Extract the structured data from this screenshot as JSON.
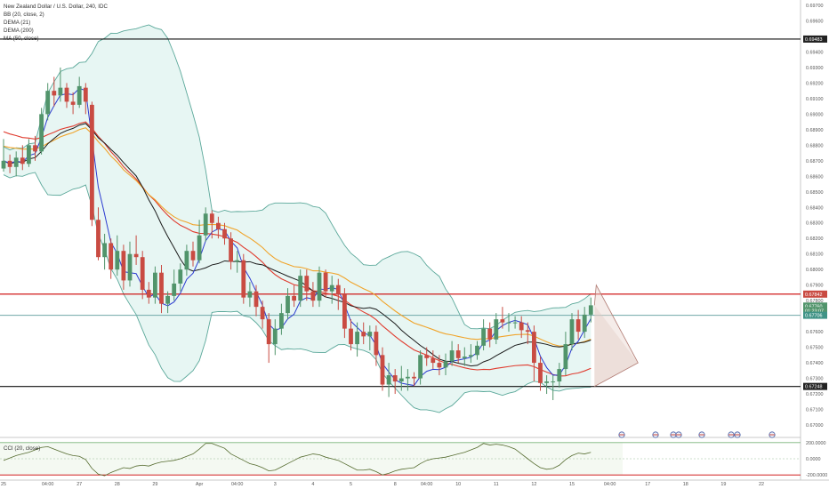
{
  "chart_header": {
    "symbol": "New Zealand Dollar / U.S. Dollar, 240, IDC",
    "indicators": [
      "BB (20, close, 2)",
      "DEMA (21)",
      "DEMA (200)",
      "MA (50, close)"
    ],
    "cci_title": "CCI (20, close)"
  },
  "colors": {
    "up": "#51946b",
    "down": "#c94b42",
    "bb": "#5ba89a",
    "bb_fill": "#dff3ef",
    "dema21": "#2c3bd1",
    "dema200": "#e03c2f",
    "ma50": "#f0a42b",
    "black_ma": "#1a1a1a",
    "resistance": "#cc0000",
    "support": "#111111",
    "midline": "#6fa8a8",
    "tag_red": "#c94b42",
    "tag_black": "#222222",
    "tag_green": "#51946b",
    "tag_teal": "#3f9386"
  },
  "price_axis": {
    "ticks": [
      "0.69700",
      "0.69600",
      "0.69483",
      "0.69400",
      "0.69300",
      "0.69200",
      "0.69100",
      "0.69000",
      "0.68900",
      "0.68800",
      "0.68700",
      "0.68600",
      "0.68500",
      "0.68400",
      "0.68300",
      "0.68200",
      "0.68100",
      "0.68000",
      "0.67900",
      "0.67842",
      "0.67800",
      "0.67760",
      "0.67706",
      "0.67600",
      "0.67500",
      "0.67400",
      "0.67300",
      "0.67248",
      "0.67200",
      "0.67100",
      "0.67000"
    ],
    "tags": [
      {
        "text": "0.69483",
        "price": 0.69483,
        "kind": "black"
      },
      {
        "text": "0.67842",
        "price": 0.67842,
        "kind": "red"
      },
      {
        "text": "0.67760",
        "price": 0.67765,
        "kind": "green"
      },
      {
        "text": "01:23:07",
        "price": 0.67735,
        "kind": "green"
      },
      {
        "text": "0.67706",
        "price": 0.67706,
        "kind": "teal"
      },
      {
        "text": "0.67248",
        "price": 0.67248,
        "kind": "black"
      }
    ]
  },
  "cci_axis": {
    "ticks": [
      "200.0000",
      "0.0000",
      "-200.0000"
    ]
  },
  "time_axis": {
    "labels": [
      {
        "t": "25",
        "i": 0
      },
      {
        "t": "04:00",
        "i": 7
      },
      {
        "t": "27",
        "i": 12
      },
      {
        "t": "28",
        "i": 18
      },
      {
        "t": "29",
        "i": 24
      },
      {
        "t": "Apr",
        "i": 31
      },
      {
        "t": "04:00",
        "i": 37
      },
      {
        "t": "3",
        "i": 43
      },
      {
        "t": "4",
        "i": 49
      },
      {
        "t": "5",
        "i": 55
      },
      {
        "t": "8",
        "i": 62
      },
      {
        "t": "04:00",
        "i": 67
      },
      {
        "t": "10",
        "i": 72
      },
      {
        "t": "11",
        "i": 78
      },
      {
        "t": "12",
        "i": 84
      },
      {
        "t": "15",
        "i": 90
      },
      {
        "t": "04:00",
        "i": 96
      },
      {
        "t": "17",
        "i": 102
      },
      {
        "t": "18",
        "i": 108
      },
      {
        "t": "19",
        "i": 114
      },
      {
        "t": "22",
        "i": 120
      }
    ]
  },
  "chart_data": {
    "type": "candlestick",
    "title": "New Zealand Dollar / U.S. Dollar, 240, IDC",
    "ylim": [
      0.67,
      0.697
    ],
    "horizontal_lines": [
      {
        "price": 0.69483,
        "color": "support"
      },
      {
        "price": 0.67842,
        "color": "resistance"
      },
      {
        "price": 0.67706,
        "color": "midline"
      },
      {
        "price": 0.67248,
        "color": "support"
      }
    ],
    "candles": [
      [
        0.6865,
        0.687,
        0.6884,
        0.6863
      ],
      [
        0.687,
        0.6866,
        0.6874,
        0.6862
      ],
      [
        0.6866,
        0.6872,
        0.6876,
        0.686
      ],
      [
        0.6872,
        0.6868,
        0.688,
        0.6864
      ],
      [
        0.6868,
        0.688,
        0.6884,
        0.6866
      ],
      [
        0.688,
        0.6876,
        0.6886,
        0.687
      ],
      [
        0.6876,
        0.69,
        0.6904,
        0.6874
      ],
      [
        0.69,
        0.6915,
        0.692,
        0.6896
      ],
      [
        0.6915,
        0.6912,
        0.6924,
        0.6905
      ],
      [
        0.6912,
        0.6917,
        0.693,
        0.6908
      ],
      [
        0.6917,
        0.6908,
        0.692,
        0.6904
      ],
      [
        0.6908,
        0.6906,
        0.6914,
        0.69
      ],
      [
        0.6906,
        0.6918,
        0.6924,
        0.6904
      ],
      [
        0.6917,
        0.6908,
        0.692,
        0.69
      ],
      [
        0.6906,
        0.6832,
        0.6908,
        0.6828
      ],
      [
        0.6832,
        0.6808,
        0.684,
        0.6806
      ],
      [
        0.6808,
        0.6817,
        0.6823,
        0.68
      ],
      [
        0.6817,
        0.68,
        0.682,
        0.6794
      ],
      [
        0.68,
        0.6812,
        0.6822,
        0.6796
      ],
      [
        0.6812,
        0.6793,
        0.6816,
        0.6787
      ],
      [
        0.6793,
        0.681,
        0.6818,
        0.6789
      ],
      [
        0.681,
        0.6808,
        0.6822,
        0.6803
      ],
      [
        0.6808,
        0.6787,
        0.6812,
        0.6781
      ],
      [
        0.6787,
        0.6782,
        0.6792,
        0.6778
      ],
      [
        0.6782,
        0.6798,
        0.6802,
        0.6778
      ],
      [
        0.6798,
        0.6778,
        0.6803,
        0.6772
      ],
      [
        0.6778,
        0.6783,
        0.6786,
        0.6772
      ],
      [
        0.6783,
        0.6791,
        0.68,
        0.678
      ],
      [
        0.6791,
        0.68,
        0.6804,
        0.6786
      ],
      [
        0.68,
        0.6812,
        0.6816,
        0.6796
      ],
      [
        0.6812,
        0.6806,
        0.6818,
        0.6802
      ],
      [
        0.6806,
        0.6822,
        0.6832,
        0.6804
      ],
      [
        0.6822,
        0.6836,
        0.684,
        0.6818
      ],
      [
        0.6836,
        0.683,
        0.6838,
        0.682
      ],
      [
        0.683,
        0.6826,
        0.6834,
        0.682
      ],
      [
        0.6826,
        0.682,
        0.683,
        0.6816
      ],
      [
        0.682,
        0.6805,
        0.6824,
        0.68
      ],
      [
        0.6805,
        0.6806,
        0.6812,
        0.6798
      ],
      [
        0.6806,
        0.6782,
        0.681,
        0.6778
      ],
      [
        0.6782,
        0.6786,
        0.6792,
        0.6776
      ],
      [
        0.6786,
        0.6776,
        0.679,
        0.677
      ],
      [
        0.6776,
        0.6768,
        0.678,
        0.6762
      ],
      [
        0.6768,
        0.6752,
        0.6772,
        0.674
      ],
      [
        0.6752,
        0.6762,
        0.6768,
        0.6745
      ],
      [
        0.6762,
        0.6772,
        0.6778,
        0.6758
      ],
      [
        0.6772,
        0.6783,
        0.6788,
        0.6768
      ],
      [
        0.6783,
        0.678,
        0.679,
        0.6776
      ],
      [
        0.678,
        0.6796,
        0.68,
        0.6776
      ],
      [
        0.6796,
        0.6786,
        0.68,
        0.678
      ],
      [
        0.6786,
        0.678,
        0.6792,
        0.6776
      ],
      [
        0.678,
        0.6798,
        0.6802,
        0.6776
      ],
      [
        0.6798,
        0.6786,
        0.68,
        0.6782
      ],
      [
        0.6786,
        0.679,
        0.6796,
        0.6778
      ],
      [
        0.679,
        0.6784,
        0.6794,
        0.6774
      ],
      [
        0.6784,
        0.6762,
        0.6788,
        0.6756
      ],
      [
        0.6762,
        0.6752,
        0.6768,
        0.6748
      ],
      [
        0.6752,
        0.676,
        0.6766,
        0.6744
      ],
      [
        0.676,
        0.6757,
        0.6766,
        0.6752
      ],
      [
        0.6757,
        0.676,
        0.6764,
        0.6748
      ],
      [
        0.676,
        0.6745,
        0.6764,
        0.6738
      ],
      [
        0.6745,
        0.6726,
        0.675,
        0.6722
      ],
      [
        0.6726,
        0.6732,
        0.674,
        0.6718
      ],
      [
        0.6732,
        0.6728,
        0.6736,
        0.672
      ],
      [
        0.6728,
        0.673,
        0.6738,
        0.6722
      ],
      [
        0.673,
        0.6731,
        0.6736,
        0.6722
      ],
      [
        0.6731,
        0.673,
        0.6734,
        0.6725
      ],
      [
        0.673,
        0.6745,
        0.6748,
        0.6726
      ],
      [
        0.6745,
        0.6743,
        0.675,
        0.6738
      ],
      [
        0.6743,
        0.674,
        0.6748,
        0.6736
      ],
      [
        0.674,
        0.6737,
        0.6745,
        0.6732
      ],
      [
        0.6737,
        0.6741,
        0.6746,
        0.6732
      ],
      [
        0.6741,
        0.6748,
        0.6754,
        0.6738
      ],
      [
        0.6748,
        0.6743,
        0.6752,
        0.674
      ],
      [
        0.6743,
        0.6744,
        0.675,
        0.6738
      ],
      [
        0.6744,
        0.6745,
        0.6752,
        0.674
      ],
      [
        0.6745,
        0.6751,
        0.6754,
        0.6742
      ],
      [
        0.6751,
        0.6762,
        0.6768,
        0.6748
      ],
      [
        0.6762,
        0.6755,
        0.6766,
        0.675
      ],
      [
        0.6755,
        0.6768,
        0.6772,
        0.6752
      ],
      [
        0.6768,
        0.6766,
        0.6776,
        0.6762
      ],
      [
        0.6766,
        0.6766,
        0.6772,
        0.676
      ],
      [
        0.6766,
        0.6766,
        0.677,
        0.6762
      ],
      [
        0.6766,
        0.6761,
        0.677,
        0.6756
      ],
      [
        0.6761,
        0.676,
        0.6766,
        0.6752
      ],
      [
        0.676,
        0.674,
        0.6764,
        0.6728
      ],
      [
        0.674,
        0.6727,
        0.6744,
        0.6722
      ],
      [
        0.6727,
        0.6728,
        0.6732,
        0.672
      ],
      [
        0.6728,
        0.6728,
        0.6732,
        0.6716
      ],
      [
        0.6728,
        0.6736,
        0.674,
        0.6724
      ],
      [
        0.6736,
        0.6752,
        0.676,
        0.6732
      ],
      [
        0.6752,
        0.6768,
        0.6772,
        0.6748
      ],
      [
        0.6768,
        0.676,
        0.6774,
        0.6755
      ],
      [
        0.676,
        0.6771,
        0.6776,
        0.6756
      ],
      [
        0.6771,
        0.6777,
        0.6782,
        0.6766
      ]
    ],
    "cci": [
      -20,
      10,
      40,
      60,
      80,
      110,
      140,
      150,
      120,
      90,
      60,
      40,
      30,
      -10,
      -120,
      -190,
      -210,
      -170,
      -140,
      -110,
      -120,
      -90,
      -80,
      -90,
      -60,
      -40,
      -30,
      -20,
      0,
      30,
      60,
      120,
      190,
      190,
      160,
      130,
      60,
      20,
      -20,
      -60,
      -80,
      -110,
      -150,
      -140,
      -100,
      -60,
      -20,
      20,
      40,
      60,
      50,
      20,
      0,
      -20,
      -60,
      -100,
      -140,
      -140,
      -130,
      -160,
      -200,
      -180,
      -150,
      -130,
      -120,
      -110,
      -60,
      -20,
      0,
      10,
      20,
      40,
      60,
      80,
      110,
      140,
      190,
      170,
      180,
      170,
      150,
      120,
      60,
      0,
      -60,
      -110,
      -130,
      -120,
      -80,
      -10,
      40,
      70,
      60,
      80
    ]
  }
}
